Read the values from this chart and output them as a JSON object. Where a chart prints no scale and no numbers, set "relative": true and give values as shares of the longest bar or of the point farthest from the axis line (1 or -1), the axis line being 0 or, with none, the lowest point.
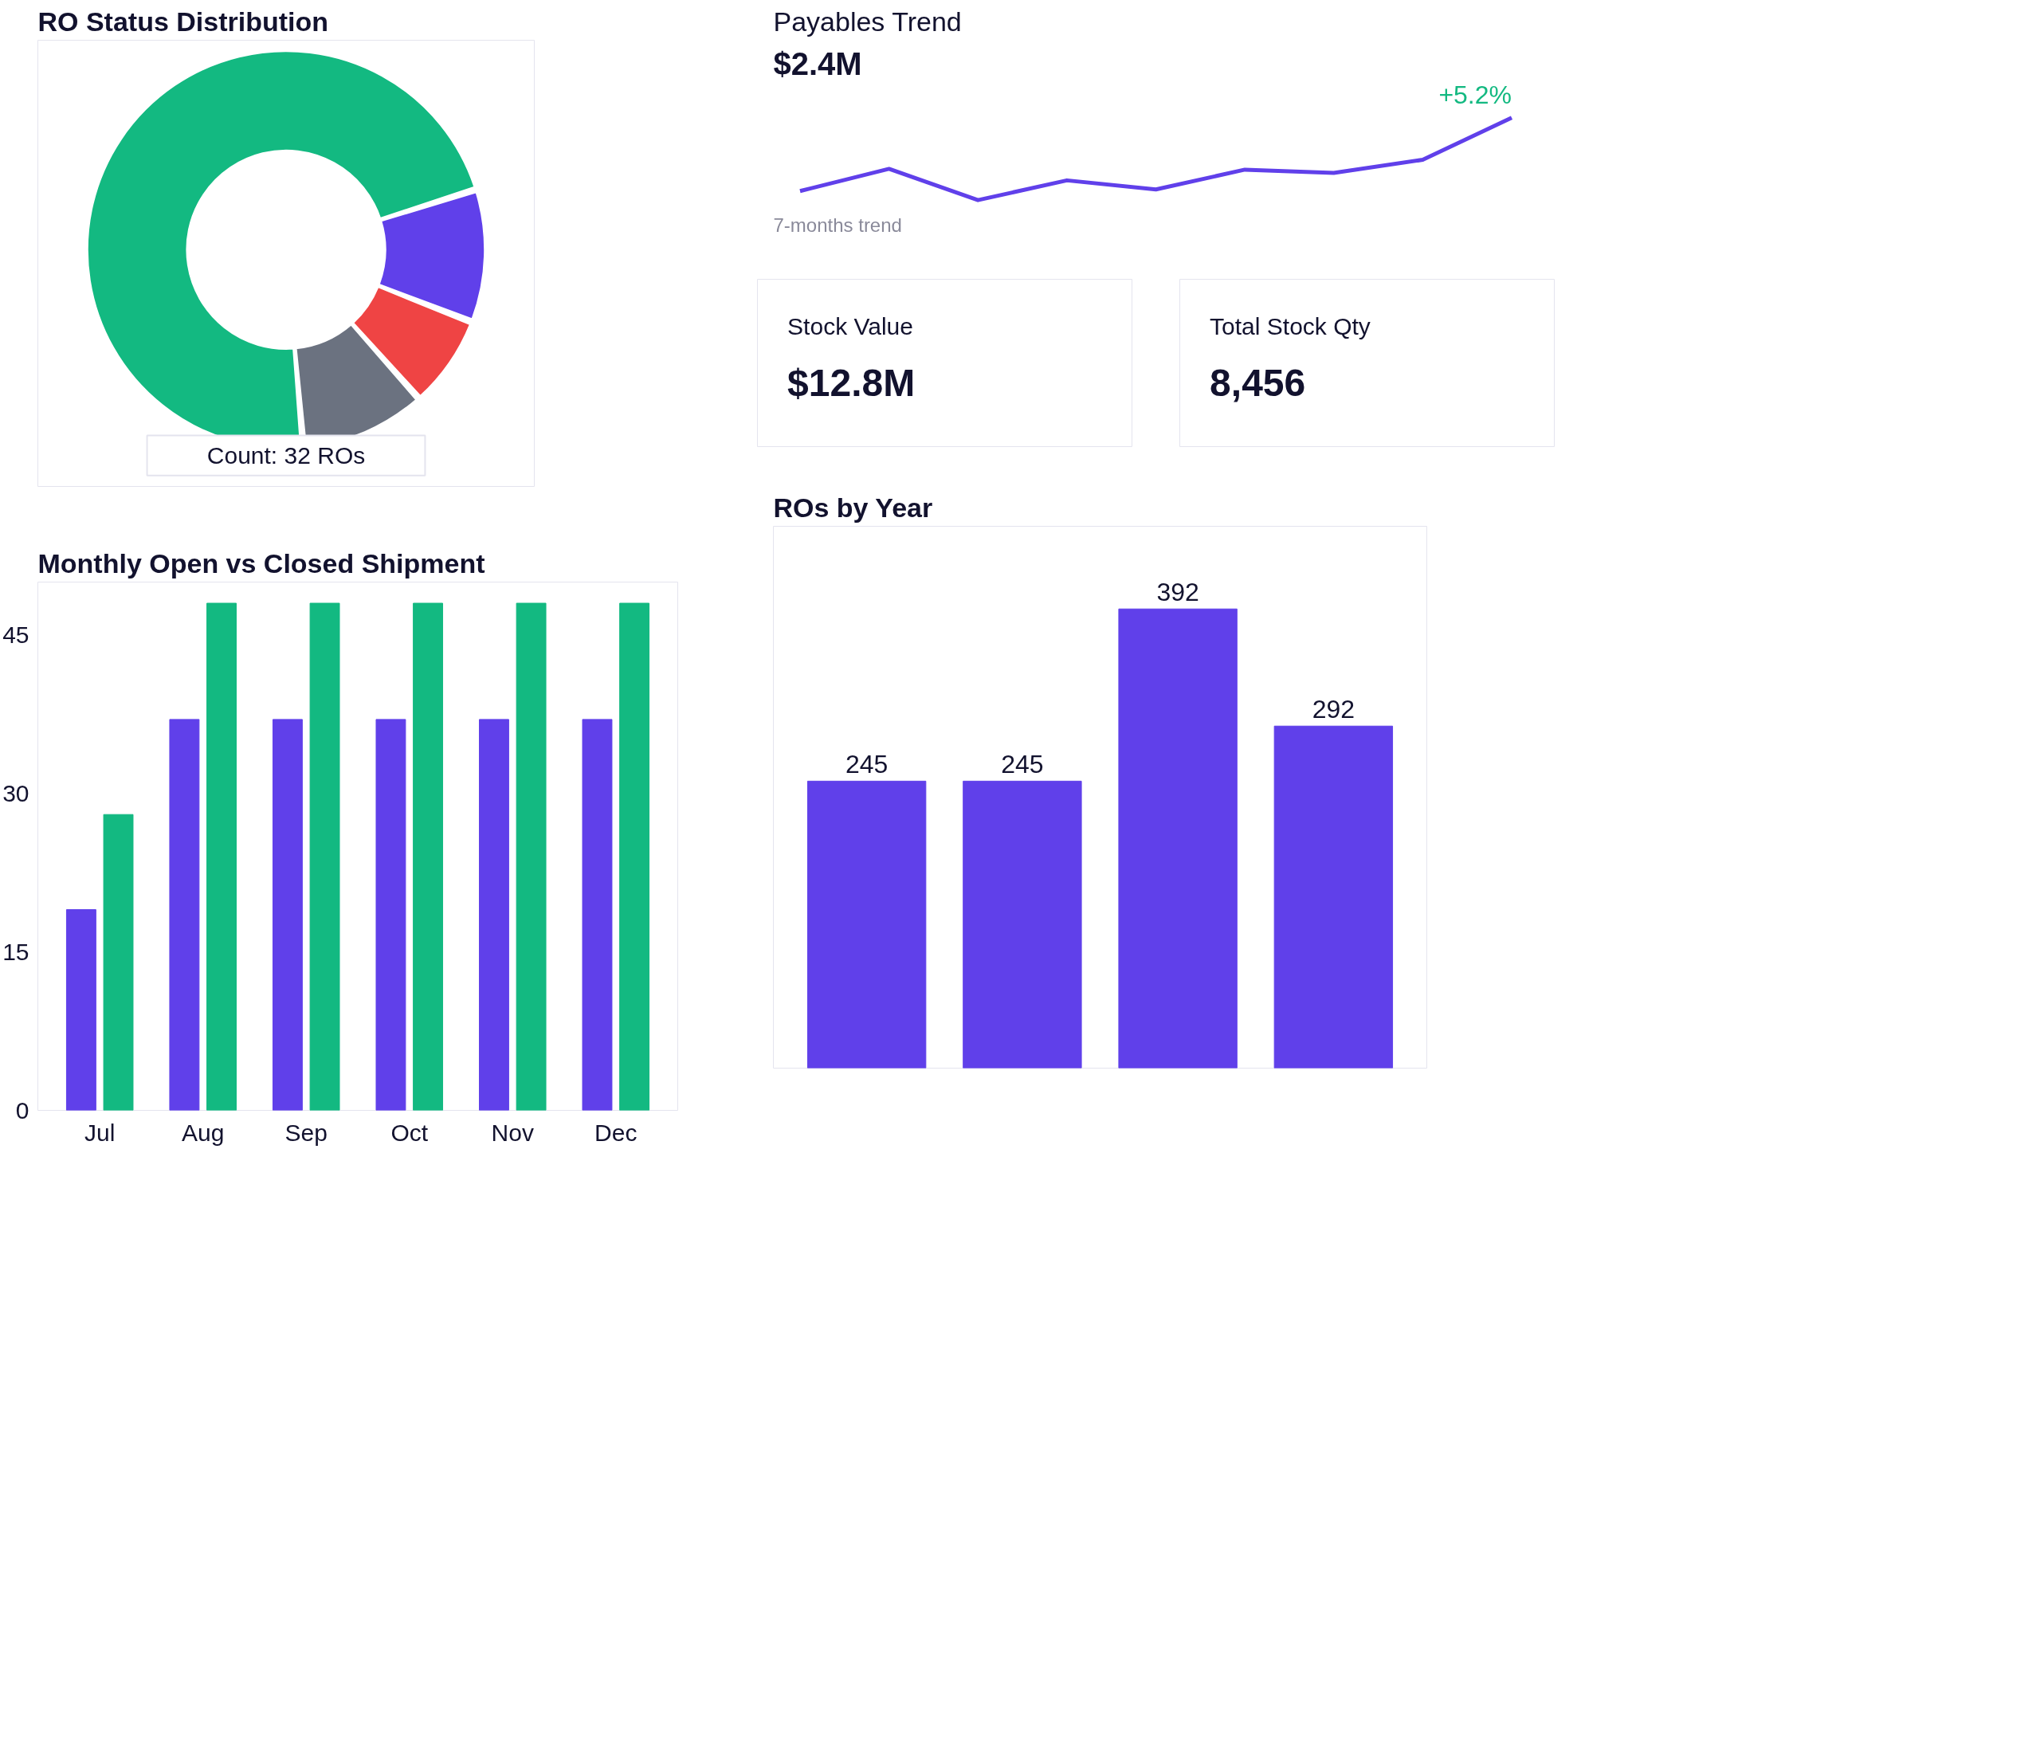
{
  "chart_data": [
    {
      "type": "donut",
      "title": "RO Status Distribution",
      "categories": [
        null,
        null,
        null,
        null
      ],
      "values": [
        71.5,
        10.8,
        7.5,
        10.2
      ],
      "colors": [
        "#13b981",
        "#6040ea",
        "#ef4444",
        "#6b7280"
      ],
      "annotations": [
        "Count: 32 ROs"
      ]
    },
    {
      "type": "line",
      "title": "Payables Trend",
      "subtitle": "$2.4M",
      "relative": true,
      "categories": [
        null,
        null,
        null,
        null,
        null,
        null,
        null,
        null,
        null
      ],
      "series": [
        {
          "color": "#6040ea",
          "values": [
            0.11,
            0.38,
            0,
            0.24,
            0.13,
            0.37,
            0.33,
            0.49,
            1
          ]
        }
      ],
      "annotations": [
        "+5.2%",
        "7-months trend"
      ]
    },
    {
      "type": "other",
      "title": "Stock Value",
      "annotations": [
        "$12.8M"
      ]
    },
    {
      "type": "other",
      "title": "Total Stock Qty",
      "annotations": [
        "8,456"
      ]
    },
    {
      "type": "bar",
      "title": "Monthly Open vs Closed Shipment",
      "categories": [
        "Jul",
        "Aug",
        "Sep",
        "Oct",
        "Nov",
        "Dec"
      ],
      "ylim": [
        0,
        50
      ],
      "yticks": [
        0,
        15,
        30,
        45
      ],
      "series": [
        {
          "color": "#6040ea",
          "values": [
            19,
            37,
            37,
            37,
            37,
            37
          ]
        },
        {
          "color": "#13b981",
          "values": [
            28,
            48,
            48,
            48,
            48,
            48
          ]
        }
      ]
    },
    {
      "type": "bar",
      "title": "ROs by Year",
      "categories": [
        null,
        null,
        null,
        null
      ],
      "values": [
        245,
        245,
        392,
        292
      ],
      "color": "#6040ea",
      "data_labels": true
    }
  ]
}
